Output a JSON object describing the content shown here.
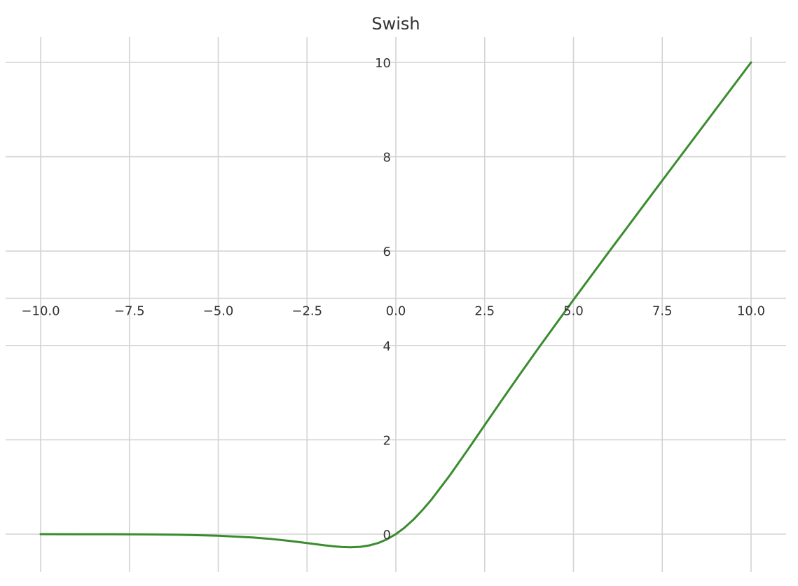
{
  "chart_data": {
    "type": "line",
    "title": "Swish",
    "xlabel": "",
    "ylabel": "",
    "xlim": [
      -10.0,
      10.0
    ],
    "ylim": [
      -0.28,
      10.0
    ],
    "x_ticks": [
      -10.0,
      -7.5,
      -5.0,
      -2.5,
      0.0,
      2.5,
      5.0,
      7.5,
      10.0
    ],
    "x_tick_labels": [
      "−10.0",
      "−7.5",
      "−5.0",
      "−2.5",
      "0.0",
      "2.5",
      "5.0",
      "7.5",
      "10.0"
    ],
    "y_ticks": [
      0,
      2,
      4,
      6,
      8,
      10
    ],
    "y_tick_labels": [
      "0",
      "2",
      "4",
      "6",
      "8",
      "10"
    ],
    "grid": true,
    "spines": "centered",
    "series": [
      {
        "color": "#3a8c2e",
        "x": [
          -10,
          -9,
          -8,
          -7,
          -6,
          -5,
          -4,
          -3.5,
          -3,
          -2.5,
          -2,
          -1.75,
          -1.5,
          -1.28,
          -1,
          -0.75,
          -0.5,
          -0.25,
          0,
          0.25,
          0.5,
          0.75,
          1,
          1.5,
          2,
          2.5,
          3,
          3.5,
          4,
          5,
          6,
          7,
          8,
          9,
          10
        ],
        "y": [
          -0.0005,
          -0.0011,
          -0.0027,
          -0.0064,
          -0.0148,
          -0.0335,
          -0.0719,
          -0.1031,
          -0.1423,
          -0.1896,
          -0.2384,
          -0.2585,
          -0.2737,
          -0.2785,
          -0.2689,
          -0.2395,
          -0.1888,
          -0.1094,
          0,
          0.1406,
          0.3112,
          0.5105,
          0.7311,
          1.2263,
          1.7616,
          2.3104,
          2.8577,
          3.3969,
          3.9281,
          4.9665,
          5.9852,
          6.9936,
          7.9973,
          8.9989,
          9.9995
        ]
      }
    ]
  }
}
